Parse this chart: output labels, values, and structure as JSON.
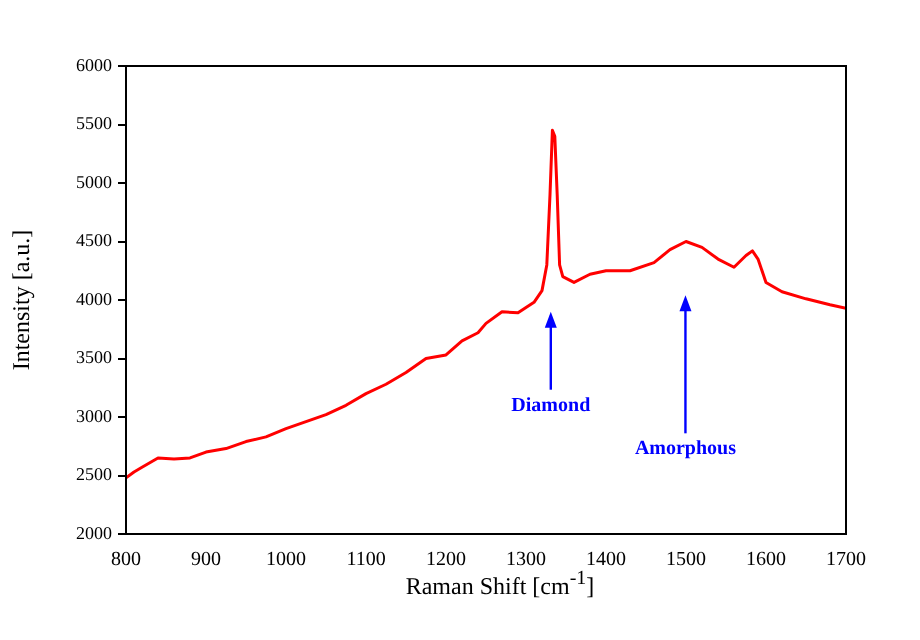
{
  "chart_data": {
    "type": "line",
    "xlabel": "Raman Shift [cm$^{-1}$]",
    "ylabel": "Intensity [a.u.]",
    "xlim": [
      800,
      1700
    ],
    "xticks": [
      800,
      900,
      1000,
      1100,
      1200,
      1300,
      1400,
      1500,
      1600,
      1700
    ],
    "ylim": [
      2000,
      6000
    ],
    "yticks": [
      2000,
      2500,
      3000,
      3500,
      4000,
      4500,
      5000,
      5500,
      6000
    ],
    "grid": false,
    "legend": false,
    "marker": "none",
    "line_style": "solid",
    "x": [
      800,
      810,
      820,
      840,
      860,
      880,
      900,
      925,
      950,
      975,
      1000,
      1025,
      1050,
      1075,
      1100,
      1125,
      1150,
      1175,
      1200,
      1220,
      1240,
      1250,
      1270,
      1290,
      1310,
      1320,
      1326,
      1330,
      1333,
      1336,
      1339,
      1342,
      1346,
      1360,
      1380,
      1400,
      1430,
      1460,
      1480,
      1500,
      1520,
      1540,
      1560,
      1575,
      1583,
      1590,
      1600,
      1620,
      1650,
      1680,
      1700
    ],
    "series": [
      {
        "color": "#ff0000",
        "values": [
          2480,
          2530,
          2570,
          2650,
          2640,
          2650,
          2700,
          2730,
          2790,
          2830,
          2900,
          2960,
          3020,
          3100,
          3200,
          3280,
          3380,
          3500,
          3530,
          3650,
          3720,
          3800,
          3900,
          3890,
          3980,
          4080,
          4300,
          4900,
          5450,
          5400,
          4900,
          4300,
          4200,
          4150,
          4220,
          4250,
          4250,
          4320,
          4430,
          4500,
          4450,
          4350,
          4280,
          4380,
          4420,
          4350,
          4150,
          4070,
          4010,
          3960,
          3930
        ]
      }
    ],
    "annotations": [
      "Diamond",
      "Amorphous"
    ]
  }
}
